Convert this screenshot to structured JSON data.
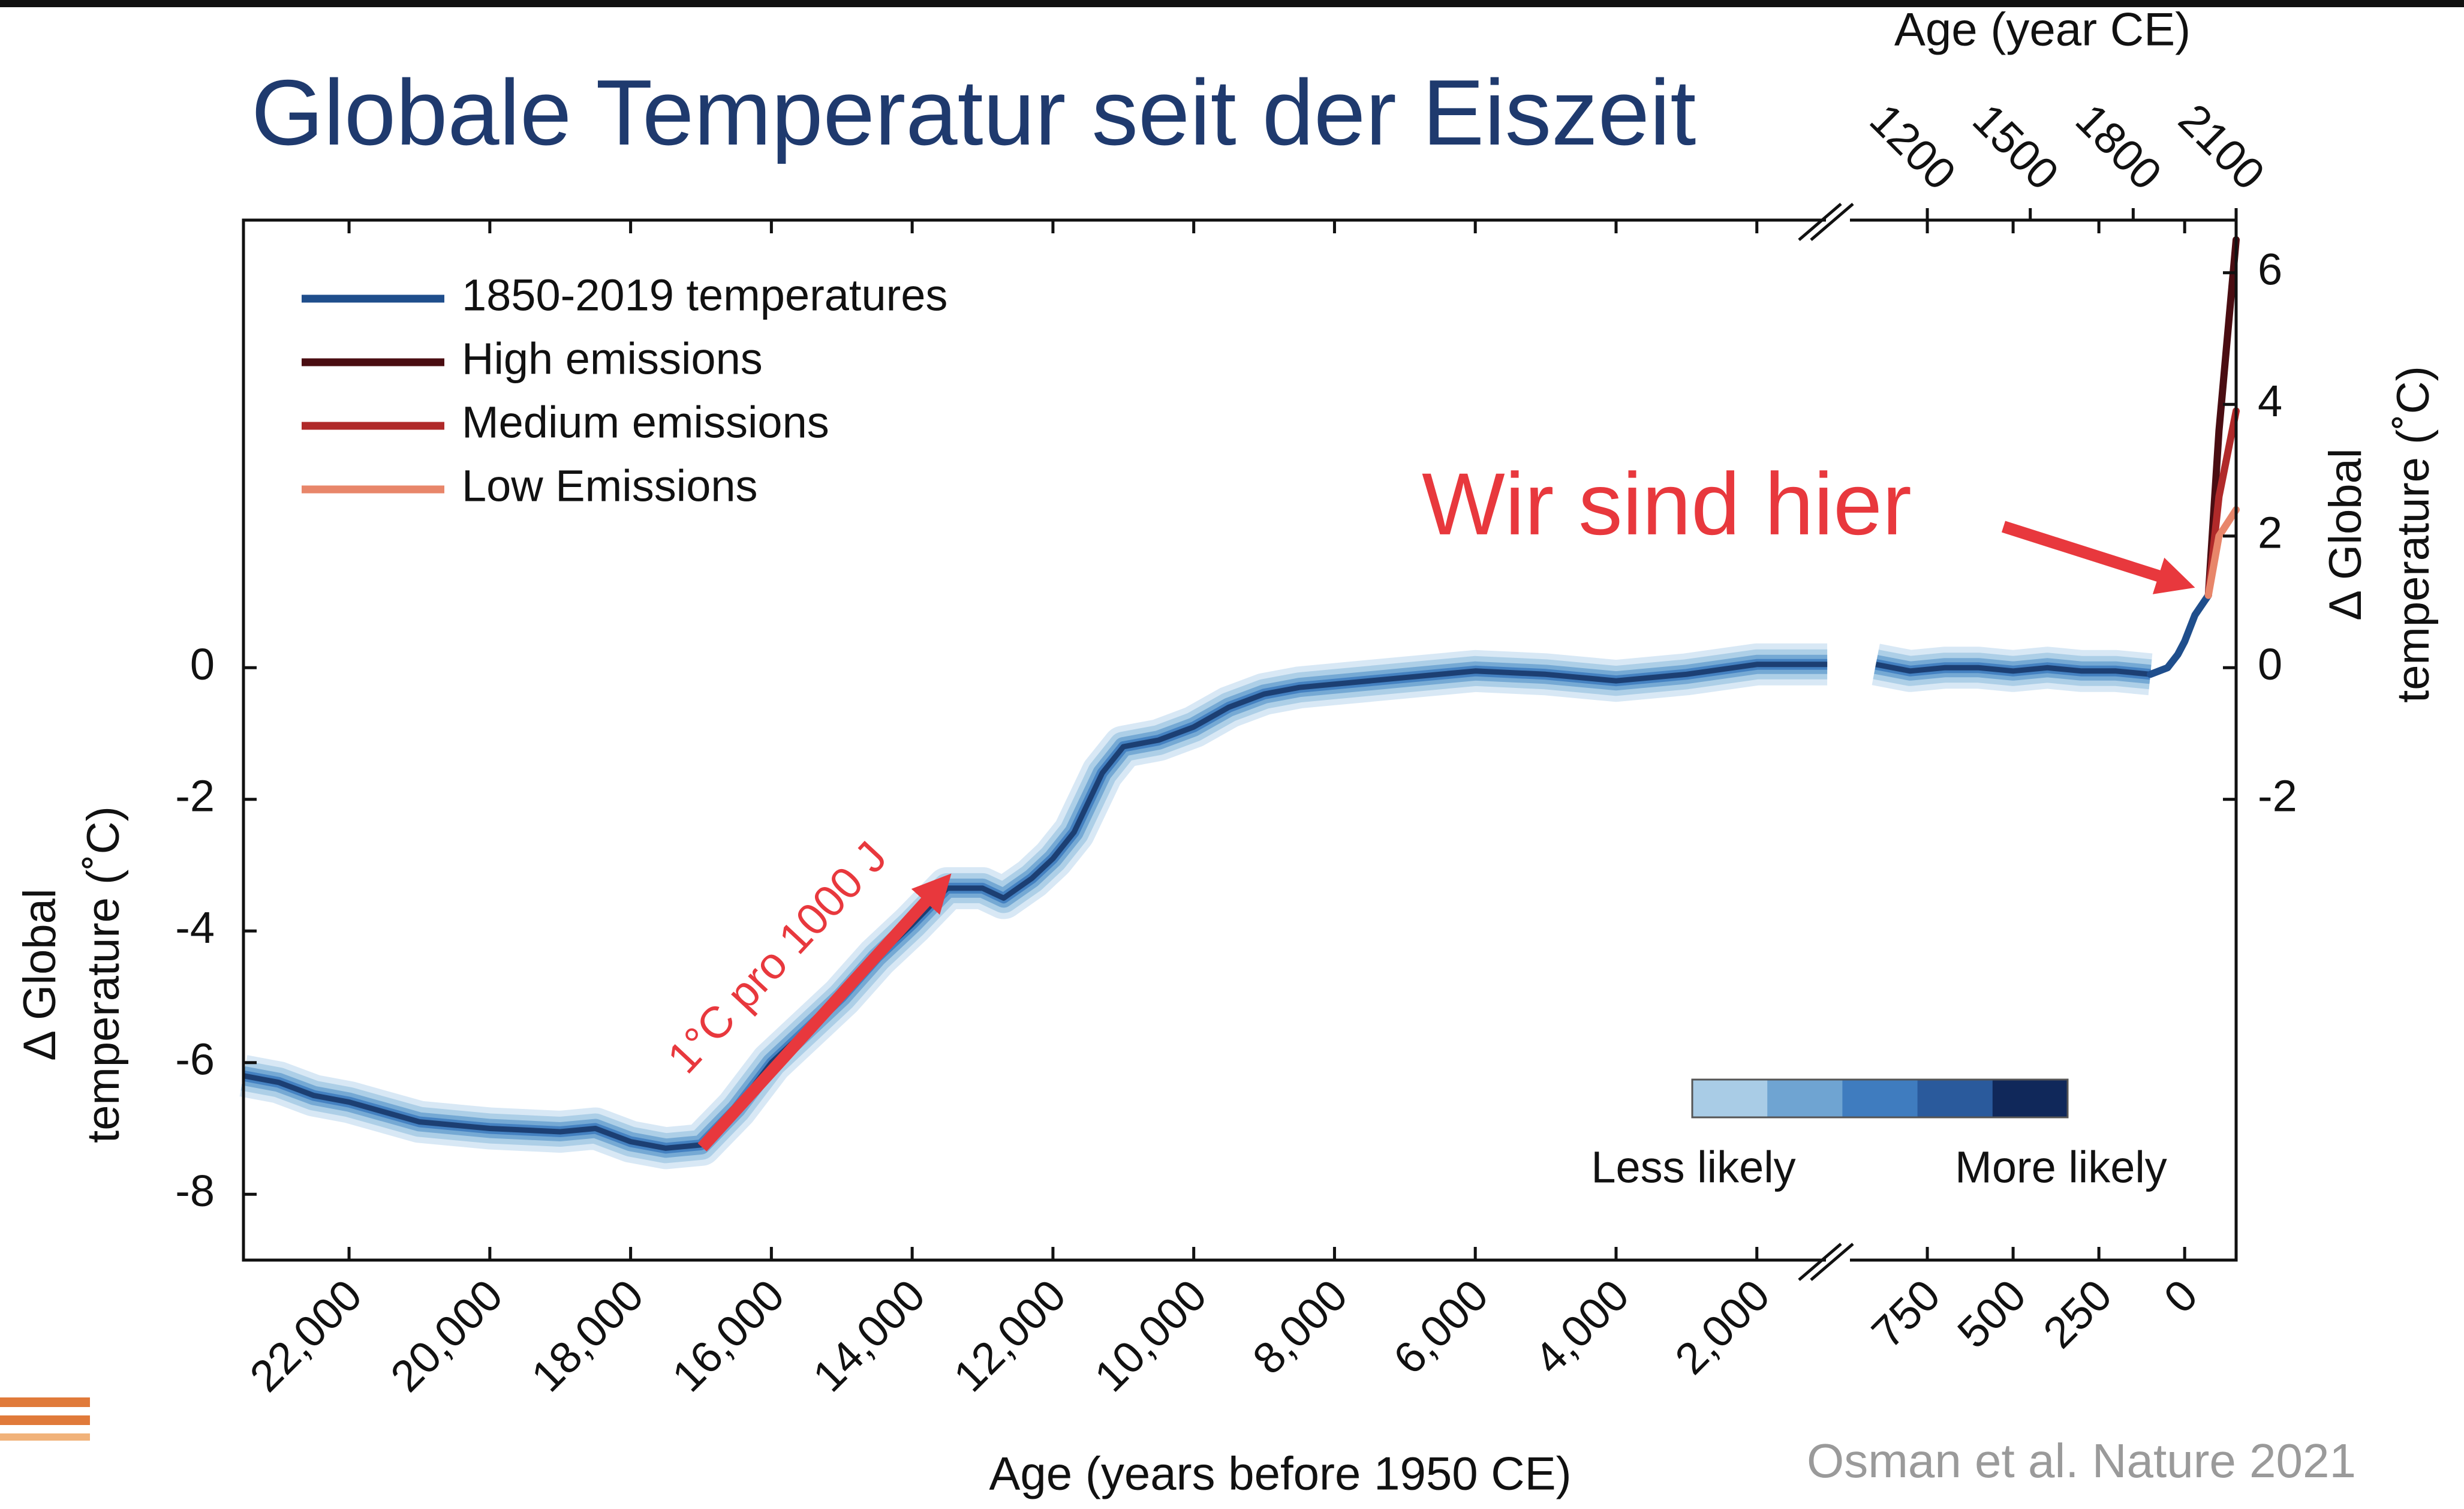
{
  "chart_data": {
    "type": "line",
    "title": "Globale Temperatur seit der Eiszeit",
    "xlabel": "Age (years before 1950 CE)",
    "x2label": "Age (year CE)",
    "ylabel": [
      "Δ Global",
      "temperature (˚C)"
    ],
    "y2label": [
      "Δ Global",
      "temperature (˚C)"
    ],
    "x_segments": [
      {
        "xlim": [
          23500,
          950
        ],
        "xticks": [
          {
            "value": 22000,
            "label": "22,000"
          },
          {
            "value": 20000,
            "label": "20,000"
          },
          {
            "value": 18000,
            "label": "18,000"
          },
          {
            "value": 16000,
            "label": "16,000"
          },
          {
            "value": 14000,
            "label": "14,000"
          },
          {
            "value": 12000,
            "label": "12,000"
          },
          {
            "value": 10000,
            "label": "10,000"
          },
          {
            "value": 8000,
            "label": "8,000"
          },
          {
            "value": 6000,
            "label": "6,000"
          },
          {
            "value": 4000,
            "label": "4,000"
          },
          {
            "value": 2000,
            "label": "2,000"
          }
        ]
      },
      {
        "xlim": [
          1000,
          -150
        ],
        "xticks": [
          750,
          500,
          250,
          0
        ]
      }
    ],
    "x2lim": [
      950,
      2100
    ],
    "x2ticks": [
      1200,
      1500,
      1800,
      2100
    ],
    "ylim": [
      -9,
      6.8
    ],
    "yticks": [
      0,
      -2,
      -4,
      -6,
      -8
    ],
    "y2lim": [
      -9,
      6.8
    ],
    "y2ticks": [
      6,
      4,
      2,
      0,
      -2
    ],
    "reconstruction": {
      "color": "#1c3f73",
      "x": [
        23500,
        23000,
        22500,
        22000,
        21000,
        20000,
        19000,
        18500,
        18000,
        17500,
        17000,
        16500,
        16000,
        15000,
        14500,
        14000,
        13500,
        13000,
        12700,
        12300,
        12000,
        11700,
        11300,
        11000,
        10500,
        10000,
        9500,
        9000,
        8500,
        8000,
        7000,
        6000,
        5000,
        4000,
        3000,
        2000,
        1000,
        900,
        800,
        700,
        600,
        500,
        400,
        300,
        200,
        100
      ],
      "values": [
        -6.2,
        -6.3,
        -6.5,
        -6.6,
        -6.9,
        -7.0,
        -7.05,
        -7.0,
        -7.2,
        -7.3,
        -7.25,
        -6.7,
        -6.0,
        -5.0,
        -4.4,
        -3.9,
        -3.35,
        -3.35,
        -3.5,
        -3.2,
        -2.9,
        -2.5,
        -1.6,
        -1.2,
        -1.1,
        -0.9,
        -0.6,
        -0.4,
        -0.3,
        -0.25,
        -0.15,
        -0.05,
        -0.1,
        -0.2,
        -0.1,
        0.05,
        0.05,
        0.05,
        -0.05,
        0.0,
        0.0,
        -0.05,
        0.0,
        -0.05,
        -0.05,
        -0.1
      ]
    },
    "series": [
      {
        "name": "1850-2019 temperatures",
        "color": "#1f4e8c",
        "x": [
          100,
          50,
          20,
          0,
          -30,
          -69
        ],
        "values": [
          -0.1,
          0.0,
          0.2,
          0.4,
          0.8,
          1.1
        ]
      },
      {
        "name": "High emissions",
        "color": "#4a0d12",
        "x": [
          -69,
          -100,
          -150
        ],
        "values": [
          1.1,
          3.6,
          6.5
        ]
      },
      {
        "name": "Medium emissions",
        "color": "#b02a2a",
        "x": [
          -69,
          -100,
          -150
        ],
        "values": [
          1.1,
          2.6,
          3.9
        ]
      },
      {
        "name": "Low Emissions",
        "color": "#e8866a",
        "x": [
          -69,
          -100,
          -150
        ],
        "values": [
          1.1,
          2.0,
          2.4
        ]
      }
    ],
    "annotations": [
      "Wir sind hier",
      "1°C pro 1000 J"
    ],
    "colorbar_labels": [
      "Less likely",
      "More likely"
    ],
    "colorbar_colors": [
      "#a9cce6",
      "#6fa4d2",
      "#3f7cbf",
      "#2a5a9c",
      "#10285a"
    ],
    "source": "Osman et al. Nature 2021"
  }
}
